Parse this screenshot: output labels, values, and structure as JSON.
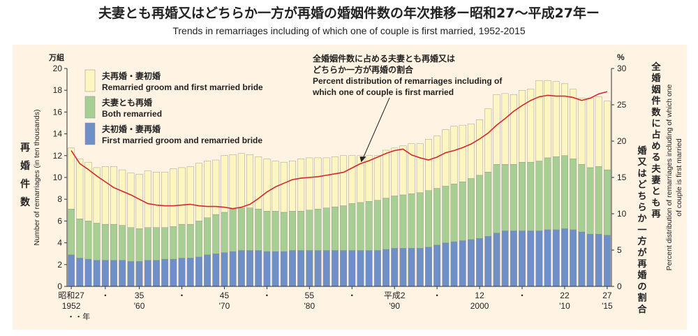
{
  "title": "夫妻とも再婚又はどちらか一方が再婚の婚姻件数の年次推移ー昭和27〜平成27年ー",
  "subtitle": "Trends in remarriages including of which one of couple is first married, 1952-2015",
  "colors": {
    "panel_bg": "#fff4e3",
    "yellow": "#fdf6c0",
    "green": "#a7cf93",
    "blue": "#6f8fc9",
    "line": "#d7262c"
  },
  "chart_data": {
    "type": "bar",
    "stacked": true,
    "x_start_year": 1952,
    "x_end_year": 2015,
    "left_axis": {
      "unit_top": "万組",
      "label_ja": "再婚件数",
      "label_en": "Number of remarriages (in ten thousands)",
      "ylim": [
        0,
        20
      ],
      "ticks": [
        0,
        2,
        4,
        6,
        8,
        10,
        12,
        14,
        16,
        18,
        20
      ]
    },
    "right_axis": {
      "unit_top": "%",
      "label_ja": "全婚姻件数に占める夫妻とも再婚又はどちらか一方が再婚の割合",
      "label_en": "Percent distribution of remarriages including of which one of couple is first married",
      "ylim": [
        0,
        30
      ],
      "ticks": [
        0,
        5,
        10,
        15,
        20,
        25,
        30
      ]
    },
    "x_tick_labels": [
      {
        "year": 1952,
        "top": "昭和27",
        "bottom": "1952"
      },
      {
        "year": 1956,
        "top": "・",
        "bottom": ""
      },
      {
        "year": 1960,
        "top": "35",
        "bottom": "'60"
      },
      {
        "year": 1965,
        "top": "・",
        "bottom": ""
      },
      {
        "year": 1970,
        "top": "45",
        "bottom": "'70"
      },
      {
        "year": 1975,
        "top": "・",
        "bottom": ""
      },
      {
        "year": 1980,
        "top": "55",
        "bottom": "'80"
      },
      {
        "year": 1985,
        "top": "・",
        "bottom": ""
      },
      {
        "year": 1990,
        "top": "平成2",
        "bottom": "'90"
      },
      {
        "year": 1995,
        "top": "・",
        "bottom": ""
      },
      {
        "year": 2000,
        "top": "12",
        "bottom": "2000"
      },
      {
        "year": 2005,
        "top": "・",
        "bottom": ""
      },
      {
        "year": 2010,
        "top": "22",
        "bottom": "'10"
      },
      {
        "year": 2015,
        "top": "27",
        "bottom": "'15"
      }
    ],
    "x_footnote": "・・年",
    "legend": [
      {
        "ja": "夫再婚・妻初婚",
        "en": "Remarried groom and first married bride",
        "color": "#fdf6c0"
      },
      {
        "ja": "夫妻とも再婚",
        "en": "Both remarried",
        "color": "#a7cf93"
      },
      {
        "ja": "夫初婚・妻再婚",
        "en": "First married groom and remarried bride",
        "color": "#6f8fc9"
      }
    ],
    "annotation": [
      "全婚姻件数に占める夫妻とも再婚又は",
      "どちらか一方が再婚の割合",
      "Percent distribution of remarriages including of",
      "which one of couple is first married"
    ],
    "series": [
      {
        "name": "夫初婚・妻再婚",
        "values": [
          2.9,
          2.6,
          2.5,
          2.4,
          2.4,
          2.4,
          2.4,
          2.3,
          2.3,
          2.4,
          2.4,
          2.5,
          2.5,
          2.6,
          2.6,
          2.7,
          2.9,
          3.0,
          3.1,
          3.2,
          3.3,
          3.3,
          3.3,
          3.2,
          3.2,
          3.2,
          3.3,
          3.3,
          3.3,
          3.3,
          3.3,
          3.3,
          3.3,
          3.3,
          3.3,
          3.3,
          3.3,
          3.4,
          3.5,
          3.5,
          3.5,
          3.5,
          3.6,
          3.8,
          4.0,
          4.1,
          4.2,
          4.3,
          4.4,
          4.6,
          4.9,
          5.1,
          5.1,
          5.1,
          5.1,
          5.1,
          5.2,
          5.2,
          5.3,
          5.2,
          5.0,
          4.8,
          4.8,
          4.7
        ]
      },
      {
        "name": "夫妻とも再婚",
        "values": [
          4.2,
          3.6,
          3.5,
          3.4,
          3.3,
          3.3,
          3.2,
          3.1,
          3.0,
          3.0,
          3.0,
          2.9,
          3.0,
          3.1,
          3.1,
          3.3,
          3.4,
          3.6,
          3.7,
          3.9,
          3.9,
          3.9,
          3.8,
          3.7,
          3.7,
          3.6,
          3.6,
          3.6,
          3.7,
          3.8,
          3.9,
          4.0,
          4.1,
          4.3,
          4.4,
          4.5,
          4.6,
          4.7,
          4.8,
          4.9,
          5.0,
          5.1,
          5.2,
          5.2,
          5.2,
          5.3,
          5.4,
          5.6,
          5.8,
          5.9,
          6.3,
          6.1,
          6.1,
          6.3,
          6.3,
          6.4,
          6.6,
          6.7,
          6.7,
          6.5,
          6.2,
          6.1,
          6.2,
          6.0
        ]
      },
      {
        "name": "夫再婚・妻初婚",
        "values": [
          5.6,
          5.5,
          5.4,
          5.1,
          5.3,
          5.3,
          5.1,
          5.0,
          5.0,
          5.2,
          5.1,
          5.1,
          5.3,
          5.2,
          5.3,
          5.3,
          5.2,
          5.0,
          5.2,
          5.0,
          5.0,
          4.9,
          4.8,
          4.8,
          4.6,
          4.6,
          4.6,
          4.8,
          4.8,
          4.7,
          4.6,
          4.6,
          4.6,
          4.4,
          4.3,
          4.2,
          4.1,
          4.4,
          4.4,
          4.5,
          4.6,
          4.5,
          4.7,
          4.8,
          5.2,
          5.3,
          5.2,
          5.0,
          5.1,
          5.8,
          6.4,
          6.5,
          6.4,
          6.6,
          6.7,
          7.4,
          7.1,
          6.9,
          6.6,
          6.4,
          6.1,
          6.4,
          6.4,
          6.3
        ]
      }
    ],
    "line": {
      "name": "全婚姻件数に占める夫妻とも再婚又はどちらか一方が再婚の割合",
      "axis": "right",
      "values": [
        18.7,
        16.9,
        16.1,
        15.2,
        14.4,
        13.6,
        13.1,
        12.6,
        12.0,
        11.4,
        11.2,
        11.1,
        11.1,
        11.2,
        11.3,
        11.1,
        11.0,
        11.0,
        10.9,
        10.7,
        10.9,
        11.3,
        12.1,
        13.0,
        13.7,
        14.2,
        14.7,
        14.9,
        15.0,
        15.1,
        15.3,
        15.5,
        15.7,
        16.3,
        16.9,
        17.3,
        17.8,
        18.3,
        18.7,
        18.9,
        18.1,
        17.7,
        17.4,
        17.8,
        18.4,
        18.7,
        19.1,
        19.6,
        20.3,
        21.1,
        22.2,
        23.1,
        24.1,
        24.9,
        25.6,
        26.1,
        26.3,
        26.2,
        26.2,
        26.0,
        25.6,
        25.9,
        26.5,
        26.8
      ]
    }
  }
}
